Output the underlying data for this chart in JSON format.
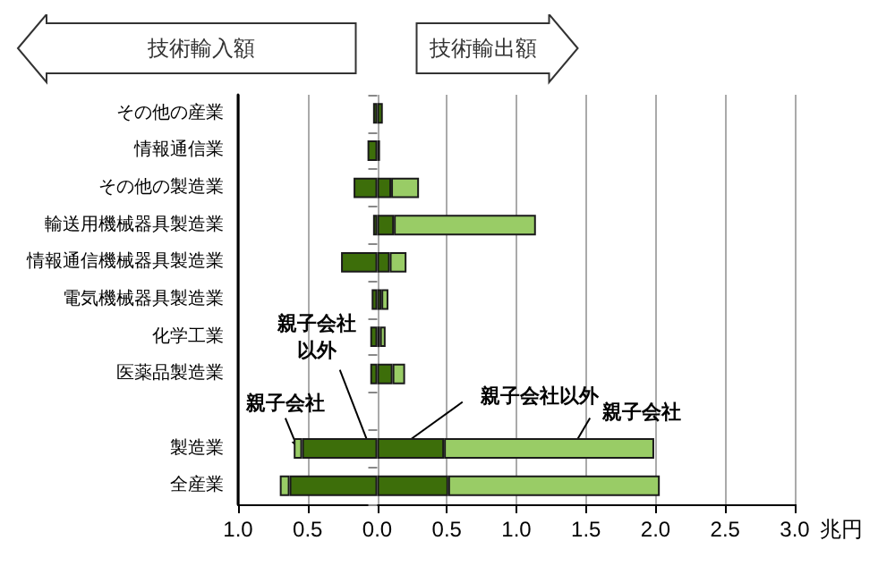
{
  "chart_data": {
    "type": "bar",
    "orientation": "horizontal",
    "stacked": true,
    "grid": "x",
    "xlabel": "兆円",
    "categories": [
      "その他の産業",
      "情報通信業",
      "その他の製造業",
      "輸送用機械器具製造業",
      "情報通信機械器具製造業",
      "電気機械器具製造業",
      "化学工業",
      "医薬品製造業",
      null,
      "製造業",
      "全産業"
    ],
    "series": [
      {
        "color": "#3d6e0a",
        "values": [
          -0.03,
          -0.07,
          -0.17,
          -0.03,
          -0.26,
          -0.04,
          -0.05,
          -0.05,
          null,
          -0.54,
          -0.63
        ]
      },
      {
        "color": "#99cc66",
        "values": [
          null,
          null,
          null,
          null,
          null,
          null,
          null,
          null,
          null,
          -0.06,
          -0.07
        ]
      },
      {
        "color": "#3d6e0a",
        "values": [
          0.04,
          0.02,
          0.1,
          0.12,
          0.09,
          0.03,
          0.02,
          0.11,
          null,
          0.48,
          0.51
        ]
      },
      {
        "color": "#99cc66",
        "values": [
          null,
          null,
          0.2,
          1.02,
          0.12,
          0.05,
          0.04,
          0.09,
          null,
          1.51,
          1.52
        ]
      }
    ],
    "xlim": [
      -1,
      3
    ],
    "xticks": [
      {
        "value": -1,
        "label": "1.0"
      },
      {
        "value": -0.5,
        "label": "0.5"
      },
      {
        "value": 0,
        "label": "0.0"
      },
      {
        "value": 0.5,
        "label": "0.5"
      },
      {
        "value": 1,
        "label": "1.0"
      },
      {
        "value": 1.5,
        "label": "1.5"
      },
      {
        "value": 2,
        "label": "2.0"
      },
      {
        "value": 2.5,
        "label": "2.5"
      },
      {
        "value": 3,
        "label": "3.0"
      }
    ],
    "annotations": [
      "技術輸入額",
      "技術輸出額",
      {
        "text": "親子会社",
        "x": -0.57,
        "y": "製造業"
      },
      {
        "text": "親子会社以外",
        "x": -0.05,
        "y": "製造業"
      },
      {
        "text": "親子会社以外",
        "x": 0.15,
        "y": "製造業"
      },
      {
        "text": "親子会社",
        "x": 1.4,
        "y": "製造業"
      }
    ]
  }
}
